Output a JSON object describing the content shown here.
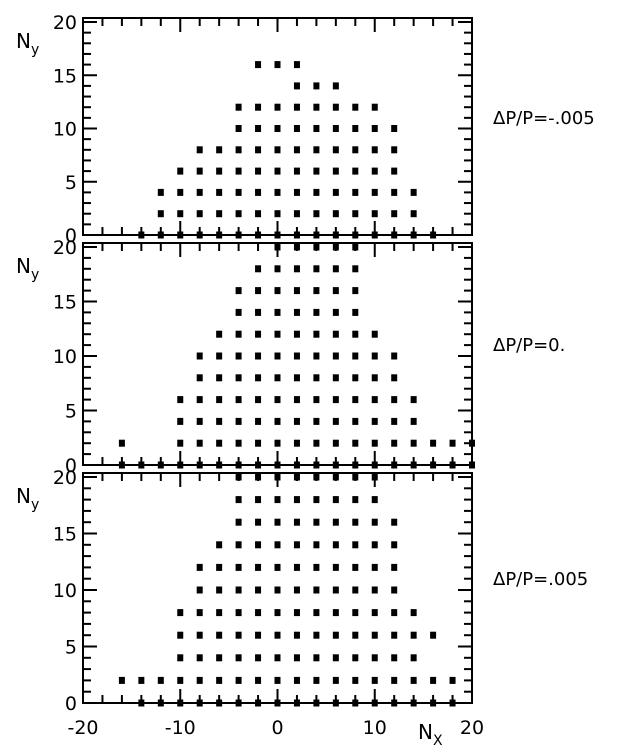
{
  "chart_data": [
    {
      "type": "scatter",
      "annotation": "ΔP/P=-.005",
      "ylabel": "N",
      "ylabel_subscript": "y",
      "xlim": [
        -20,
        20
      ],
      "ylim": [
        0,
        20
      ],
      "rows": [
        {
          "y": 0,
          "x": [
            -14,
            -12,
            -10,
            -8,
            -6,
            -4,
            -2,
            0,
            2,
            4,
            6,
            8,
            10,
            12,
            14,
            16
          ]
        },
        {
          "y": 2,
          "x": [
            -12,
            -10,
            -8,
            -6,
            -4,
            -2,
            0,
            2,
            4,
            6,
            8,
            10,
            12,
            14
          ]
        },
        {
          "y": 4,
          "x": [
            -12,
            -10,
            -8,
            -6,
            -4,
            -2,
            0,
            2,
            4,
            6,
            8,
            10,
            12,
            14
          ]
        },
        {
          "y": 6,
          "x": [
            -10,
            -8,
            -6,
            -4,
            -2,
            0,
            2,
            4,
            6,
            8,
            10,
            12
          ]
        },
        {
          "y": 8,
          "x": [
            -8,
            -6,
            -4,
            -2,
            0,
            2,
            4,
            6,
            8,
            10,
            12
          ]
        },
        {
          "y": 10,
          "x": [
            -4,
            -2,
            0,
            2,
            4,
            6,
            8,
            10,
            12
          ]
        },
        {
          "y": 12,
          "x": [
            -4,
            -2,
            0,
            2,
            4,
            6,
            8,
            10
          ]
        },
        {
          "y": 14,
          "x": [
            2,
            4,
            6
          ]
        },
        {
          "y": 16,
          "x": [
            -2,
            0,
            2
          ]
        }
      ]
    },
    {
      "type": "scatter",
      "annotation": "ΔP/P=0.",
      "ylabel": "N",
      "ylabel_subscript": "y",
      "xlim": [
        -20,
        20
      ],
      "ylim": [
        0,
        20
      ],
      "rows": [
        {
          "y": 0,
          "x": [
            -16,
            -14,
            -12,
            -10,
            -8,
            -6,
            -4,
            -2,
            0,
            2,
            4,
            6,
            8,
            10,
            12,
            14,
            16,
            18,
            20
          ]
        },
        {
          "y": 2,
          "x": [
            -16,
            -10,
            -8,
            -6,
            -4,
            -2,
            0,
            2,
            4,
            6,
            8,
            10,
            12,
            14,
            16,
            18,
            20
          ]
        },
        {
          "y": 4,
          "x": [
            -10,
            -8,
            -6,
            -4,
            -2,
            0,
            2,
            4,
            6,
            8,
            10,
            12,
            14
          ]
        },
        {
          "y": 6,
          "x": [
            -10,
            -8,
            -6,
            -4,
            -2,
            0,
            2,
            4,
            6,
            8,
            10,
            12,
            14
          ]
        },
        {
          "y": 8,
          "x": [
            -8,
            -6,
            -4,
            -2,
            0,
            2,
            4,
            6,
            8,
            10,
            12
          ]
        },
        {
          "y": 10,
          "x": [
            -8,
            -6,
            -4,
            -2,
            0,
            2,
            4,
            6,
            8,
            10,
            12
          ]
        },
        {
          "y": 12,
          "x": [
            -6,
            -4,
            -2,
            0,
            2,
            4,
            6,
            8,
            10
          ]
        },
        {
          "y": 14,
          "x": [
            -4,
            -2,
            0,
            2,
            4,
            6,
            8
          ]
        },
        {
          "y": 16,
          "x": [
            -4,
            -2,
            0,
            2,
            4,
            6,
            8
          ]
        },
        {
          "y": 18,
          "x": [
            -2,
            0,
            2,
            4,
            6,
            8
          ]
        },
        {
          "y": 20,
          "x": [
            0,
            2,
            4,
            6,
            8
          ]
        }
      ]
    },
    {
      "type": "scatter",
      "annotation": "ΔP/P=.005",
      "xlabel": "N",
      "xlabel_subscript": "X",
      "ylabel": "N",
      "ylabel_subscript": "y",
      "xlim": [
        -20,
        20
      ],
      "ylim": [
        0,
        20
      ],
      "rows": [
        {
          "y": 0,
          "x": [
            -14,
            -12,
            -10,
            -8,
            -6,
            -4,
            -2,
            0,
            2,
            4,
            6,
            8,
            10,
            12,
            14,
            16,
            18
          ]
        },
        {
          "y": 2,
          "x": [
            -16,
            -14,
            -12,
            -10,
            -8,
            -6,
            -4,
            -2,
            0,
            2,
            4,
            6,
            8,
            10,
            12,
            14,
            16,
            18
          ]
        },
        {
          "y": 4,
          "x": [
            -10,
            -8,
            -6,
            -4,
            -2,
            0,
            2,
            4,
            6,
            8,
            10,
            12,
            14
          ]
        },
        {
          "y": 6,
          "x": [
            -10,
            -8,
            -6,
            -4,
            -2,
            0,
            2,
            4,
            6,
            8,
            10,
            12,
            14,
            16
          ]
        },
        {
          "y": 8,
          "x": [
            -10,
            -8,
            -6,
            -4,
            -2,
            0,
            2,
            4,
            6,
            8,
            10,
            12,
            14
          ]
        },
        {
          "y": 10,
          "x": [
            -8,
            -6,
            -4,
            -2,
            0,
            2,
            4,
            6,
            8,
            10,
            12
          ]
        },
        {
          "y": 12,
          "x": [
            -8,
            -6,
            -4,
            -2,
            0,
            2,
            4,
            6,
            8,
            10,
            12
          ]
        },
        {
          "y": 14,
          "x": [
            -6,
            -4,
            -2,
            0,
            2,
            4,
            6,
            8,
            10,
            12
          ]
        },
        {
          "y": 16,
          "x": [
            -4,
            -2,
            0,
            2,
            4,
            6,
            8,
            10,
            12
          ]
        },
        {
          "y": 18,
          "x": [
            -4,
            -2,
            0,
            2,
            4,
            6,
            8,
            10
          ]
        },
        {
          "y": 20,
          "x": [
            -4,
            -2,
            0,
            2,
            4,
            6,
            8,
            10
          ]
        }
      ]
    }
  ],
  "x_ticks": [
    -20,
    -10,
    0,
    10,
    20
  ],
  "y_ticks": [
    0,
    5,
    10,
    15,
    20
  ],
  "colors": {
    "axis": "#000000",
    "marker": "#000000",
    "background": "#ffffff"
  }
}
